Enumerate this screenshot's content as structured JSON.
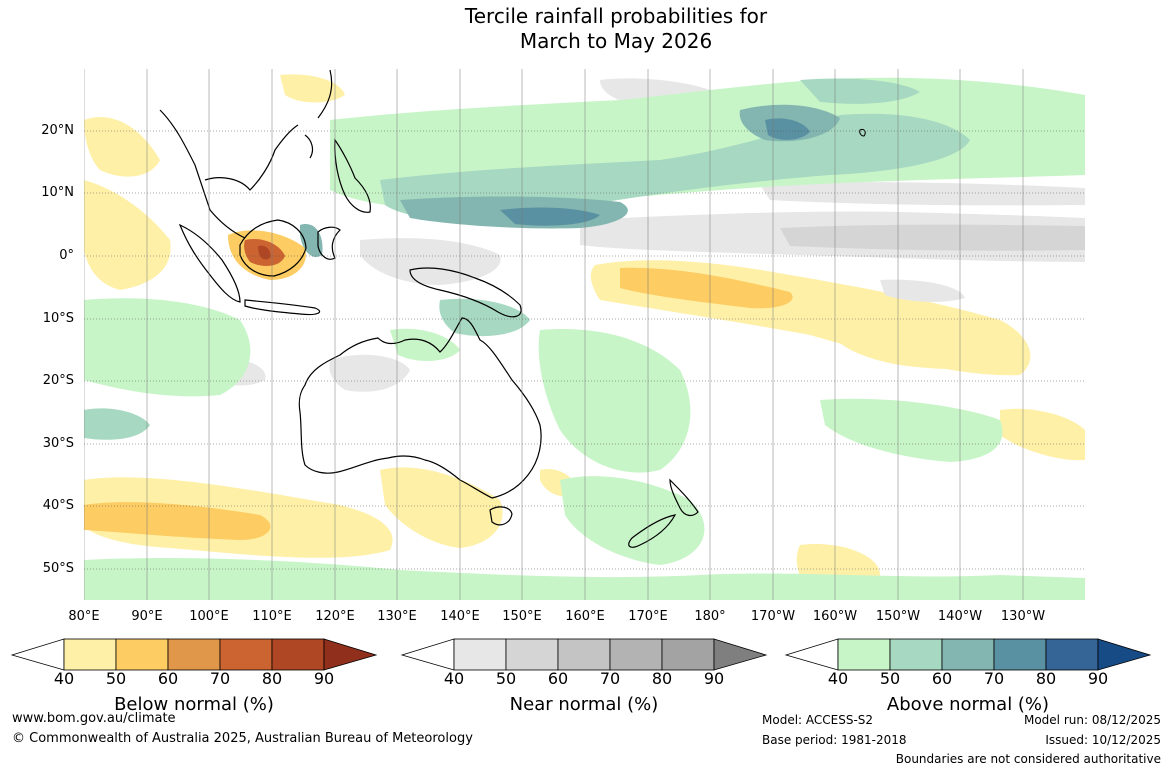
{
  "title": {
    "line1": "Tercile rainfall probabilities for",
    "line2": "March to May 2026"
  },
  "map": {
    "lat_labels": [
      "20°N",
      "10°N",
      "0°",
      "10°S",
      "20°S",
      "30°S",
      "40°S",
      "50°S"
    ],
    "lon_labels": [
      "80°E",
      "90°E",
      "100°E",
      "110°E",
      "120°E",
      "130°E",
      "140°E",
      "150°E",
      "160°E",
      "170°E",
      "180°",
      "170°W",
      "160°W",
      "150°W",
      "140°W",
      "130°W"
    ]
  },
  "legends": [
    {
      "name": "below",
      "title": "Below normal (%)",
      "ticks": [
        "40",
        "50",
        "60",
        "70",
        "80",
        "90"
      ],
      "colors": [
        "#fff0a8",
        "#fdcc63",
        "#e19749",
        "#cc6432",
        "#af4725",
        "#8f2f1c"
      ]
    },
    {
      "name": "near",
      "title": "Near normal (%)",
      "ticks": [
        "40",
        "50",
        "60",
        "70",
        "80",
        "90"
      ],
      "colors": [
        "#e7e7e7",
        "#d5d5d5",
        "#c4c4c4",
        "#b3b3b3",
        "#a3a3a3",
        "#7f7f7f"
      ]
    },
    {
      "name": "above",
      "title": "Above normal (%)",
      "ticks": [
        "40",
        "50",
        "60",
        "70",
        "80",
        "90"
      ],
      "colors": [
        "#c8f5c8",
        "#a7d8c1",
        "#83b6b0",
        "#5a91a2",
        "#356596",
        "#174b85"
      ]
    }
  ],
  "footer": {
    "website": "www.bom.gov.au/climate",
    "copyright": "© Commonwealth of Australia 2025, Australian Bureau of Meteorology",
    "model": "Model: ACCESS-S2",
    "base_period": "Base period: 1981-2018",
    "model_run": "Model run: 08/12/2025",
    "issued": "Issued: 10/12/2025",
    "disclaimer": "Boundaries are not considered authoritative"
  }
}
